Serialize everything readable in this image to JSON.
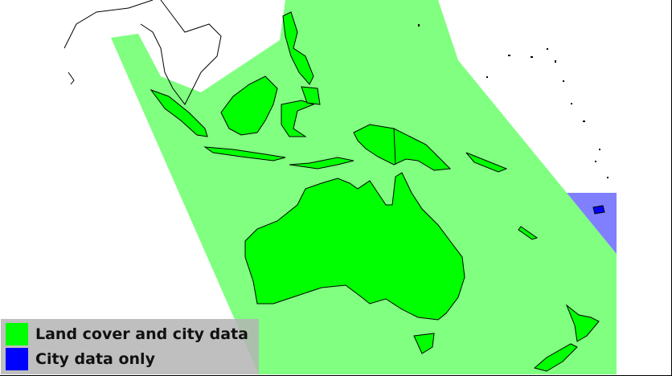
{
  "legend": {
    "items": [
      {
        "label": "Land cover and city data",
        "color": "#00ff00"
      },
      {
        "label": "City data only",
        "color": "#0000ff"
      }
    ]
  },
  "colors": {
    "land_cover_region": "#80ff80",
    "city_only_region": "#8080ff",
    "land": "#00ff00",
    "outline": "#000000"
  }
}
